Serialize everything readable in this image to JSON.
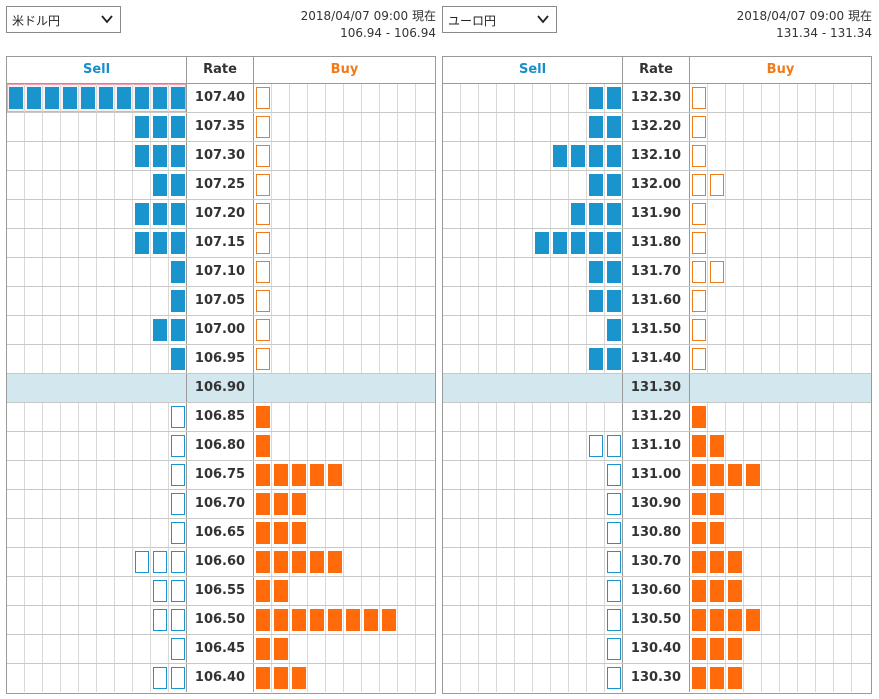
{
  "panels": [
    {
      "pair": "米ドル円",
      "timestamp": "2018/04/07 09:00 現在",
      "quote": "106.94 - 106.94",
      "headers": {
        "sell": "Sell",
        "rate": "Rate",
        "buy": "Buy"
      },
      "highlight_row": 0,
      "mid_row": 10,
      "rows": [
        {
          "rate": "107.40",
          "sell": [
            10,
            0
          ],
          "buy": [
            0,
            1
          ]
        },
        {
          "rate": "107.35",
          "sell": [
            3,
            0
          ],
          "buy": [
            0,
            1
          ]
        },
        {
          "rate": "107.30",
          "sell": [
            3,
            0
          ],
          "buy": [
            0,
            1
          ]
        },
        {
          "rate": "107.25",
          "sell": [
            2,
            0
          ],
          "buy": [
            0,
            1
          ]
        },
        {
          "rate": "107.20",
          "sell": [
            3,
            0
          ],
          "buy": [
            0,
            1
          ]
        },
        {
          "rate": "107.15",
          "sell": [
            3,
            0
          ],
          "buy": [
            0,
            1
          ]
        },
        {
          "rate": "107.10",
          "sell": [
            1,
            0
          ],
          "buy": [
            0,
            1
          ]
        },
        {
          "rate": "107.05",
          "sell": [
            1,
            0
          ],
          "buy": [
            0,
            1
          ]
        },
        {
          "rate": "107.00",
          "sell": [
            2,
            0
          ],
          "buy": [
            0,
            1
          ]
        },
        {
          "rate": "106.95",
          "sell": [
            1,
            0
          ],
          "buy": [
            0,
            1
          ]
        },
        {
          "rate": "106.90",
          "sell": [
            0,
            0
          ],
          "buy": [
            0,
            0
          ]
        },
        {
          "rate": "106.85",
          "sell": [
            0,
            1
          ],
          "buy": [
            1,
            0
          ]
        },
        {
          "rate": "106.80",
          "sell": [
            0,
            1
          ],
          "buy": [
            1,
            0
          ]
        },
        {
          "rate": "106.75",
          "sell": [
            0,
            1
          ],
          "buy": [
            5,
            0
          ]
        },
        {
          "rate": "106.70",
          "sell": [
            0,
            1
          ],
          "buy": [
            3,
            0
          ]
        },
        {
          "rate": "106.65",
          "sell": [
            0,
            1
          ],
          "buy": [
            3,
            0
          ]
        },
        {
          "rate": "106.60",
          "sell": [
            0,
            3
          ],
          "buy": [
            5,
            0
          ]
        },
        {
          "rate": "106.55",
          "sell": [
            0,
            2
          ],
          "buy": [
            2,
            0
          ]
        },
        {
          "rate": "106.50",
          "sell": [
            0,
            2
          ],
          "buy": [
            8,
            0
          ]
        },
        {
          "rate": "106.45",
          "sell": [
            0,
            1
          ],
          "buy": [
            2,
            0
          ]
        },
        {
          "rate": "106.40",
          "sell": [
            0,
            2
          ],
          "buy": [
            3,
            0
          ]
        }
      ]
    },
    {
      "pair": "ユーロ円",
      "timestamp": "2018/04/07 09:00 現在",
      "quote": "131.34 - 131.34",
      "headers": {
        "sell": "Sell",
        "rate": "Rate",
        "buy": "Buy"
      },
      "highlight_row": -1,
      "mid_row": 10,
      "rows": [
        {
          "rate": "132.30",
          "sell": [
            2,
            0
          ],
          "buy": [
            0,
            1
          ]
        },
        {
          "rate": "132.20",
          "sell": [
            2,
            0
          ],
          "buy": [
            0,
            1
          ]
        },
        {
          "rate": "132.10",
          "sell": [
            4,
            0
          ],
          "buy": [
            0,
            1
          ]
        },
        {
          "rate": "132.00",
          "sell": [
            2,
            0
          ],
          "buy": [
            0,
            2
          ]
        },
        {
          "rate": "131.90",
          "sell": [
            3,
            0
          ],
          "buy": [
            0,
            1
          ]
        },
        {
          "rate": "131.80",
          "sell": [
            5,
            0
          ],
          "buy": [
            0,
            1
          ]
        },
        {
          "rate": "131.70",
          "sell": [
            2,
            0
          ],
          "buy": [
            0,
            2
          ]
        },
        {
          "rate": "131.60",
          "sell": [
            2,
            0
          ],
          "buy": [
            0,
            1
          ]
        },
        {
          "rate": "131.50",
          "sell": [
            1,
            0
          ],
          "buy": [
            0,
            1
          ]
        },
        {
          "rate": "131.40",
          "sell": [
            2,
            0
          ],
          "buy": [
            0,
            1
          ]
        },
        {
          "rate": "131.30",
          "sell": [
            0,
            0
          ],
          "buy": [
            0,
            0
          ]
        },
        {
          "rate": "131.20",
          "sell": [
            0,
            0
          ],
          "buy": [
            1,
            0
          ]
        },
        {
          "rate": "131.10",
          "sell": [
            0,
            2
          ],
          "buy": [
            2,
            0
          ]
        },
        {
          "rate": "131.00",
          "sell": [
            0,
            1
          ],
          "buy": [
            4,
            0
          ]
        },
        {
          "rate": "130.90",
          "sell": [
            0,
            1
          ],
          "buy": [
            2,
            0
          ]
        },
        {
          "rate": "130.80",
          "sell": [
            0,
            1
          ],
          "buy": [
            2,
            0
          ]
        },
        {
          "rate": "130.70",
          "sell": [
            0,
            1
          ],
          "buy": [
            3,
            0
          ]
        },
        {
          "rate": "130.60",
          "sell": [
            0,
            1
          ],
          "buy": [
            3,
            0
          ]
        },
        {
          "rate": "130.50",
          "sell": [
            0,
            1
          ],
          "buy": [
            4,
            0
          ]
        },
        {
          "rate": "130.40",
          "sell": [
            0,
            1
          ],
          "buy": [
            3,
            0
          ]
        },
        {
          "rate": "130.30",
          "sell": [
            0,
            1
          ],
          "buy": [
            3,
            0
          ]
        }
      ]
    }
  ],
  "legend_note": "sell/buy arrays are [filled_count, outlined_count]",
  "colors": {
    "sell": "#1a94cc",
    "buy": "#ff6a0a",
    "mid_row_bg": "#d3e7ee",
    "highlight_border": "#f0a5b5"
  },
  "icons": {
    "select_chevron": "chevron-down-icon"
  }
}
